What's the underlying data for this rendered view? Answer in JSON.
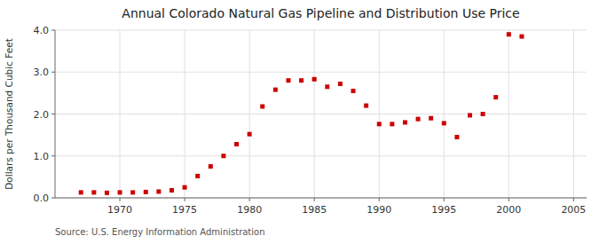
{
  "chart_data": {
    "type": "scatter",
    "title": "Annual Colorado Natural Gas Pipeline and Distribution Use Price",
    "y_label": "Dollars per Thousand Cubic Feet",
    "source": "Source: U.S. Energy Information Administration",
    "x": [
      1967,
      1968,
      1969,
      1970,
      1971,
      1972,
      1973,
      1974,
      1975,
      1976,
      1977,
      1978,
      1979,
      1980,
      1981,
      1982,
      1983,
      1984,
      1985,
      1986,
      1987,
      1988,
      1989,
      1990,
      1991,
      1992,
      1993,
      1994,
      1995,
      1996,
      1997,
      1998,
      1999,
      2000,
      2001
    ],
    "values": [
      0.13,
      0.13,
      0.12,
      0.13,
      0.13,
      0.14,
      0.15,
      0.18,
      0.25,
      0.52,
      0.75,
      1.0,
      1.28,
      1.52,
      2.18,
      2.58,
      2.8,
      2.8,
      2.83,
      2.65,
      2.72,
      2.55,
      2.2,
      1.76,
      1.76,
      1.8,
      1.88,
      1.9,
      1.78,
      1.45,
      1.97,
      2.0,
      2.4,
      3.9,
      3.85
    ],
    "color": "#cc0000",
    "marker": "square",
    "xlim": [
      1965,
      2006
    ],
    "xticks": [
      1970,
      1975,
      1980,
      1985,
      1990,
      1995,
      2000,
      2005
    ],
    "ylim": [
      0.0,
      4.0
    ],
    "yticks": [
      {
        "value": 0.0,
        "label": "0.0"
      },
      {
        "value": 1.0,
        "label": "1.0"
      },
      {
        "value": 2.0,
        "label": "2.0"
      },
      {
        "value": 3.0,
        "label": "3.0"
      },
      {
        "value": 4.0,
        "label": "4.0"
      }
    ],
    "grid": true
  }
}
